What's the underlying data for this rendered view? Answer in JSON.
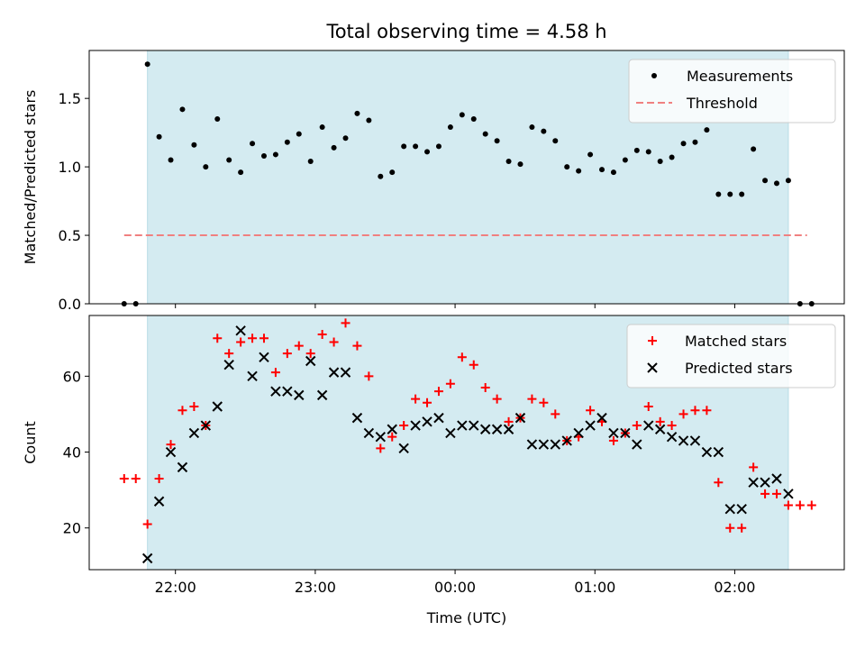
{
  "chart_data": {
    "title": "Total observing time = 4.58 h",
    "xlabel": "Time (UTC)",
    "x_tick_labels": [
      "22:00",
      "23:00",
      "00:00",
      "01:00",
      "02:00"
    ],
    "x_tick_values": [
      0,
      60,
      120,
      180,
      240
    ],
    "xlim": [
      -37,
      287
    ],
    "observing_window": [
      -12,
      263
    ],
    "window_color": "#d4ebf1",
    "panels": [
      {
        "type": "scatter",
        "ylabel": "Matched/Predicted stars",
        "ylim": [
          0,
          1.85
        ],
        "y_tick_values": [
          0.0,
          0.5,
          1.0,
          1.5
        ],
        "y_tick_labels": [
          "0.0",
          "0.5",
          "1.0",
          "1.5"
        ],
        "threshold": {
          "name": "Threshold",
          "value": 0.5,
          "x_range": [
            -22,
            271
          ],
          "color": "#f08080"
        },
        "series": [
          {
            "name": "Measurements",
            "color": "#000000",
            "marker": "dot",
            "x": [
              -22,
              -17,
              -12,
              -7,
              -2,
              3,
              8,
              13,
              18,
              23,
              28,
              33,
              38,
              43,
              48,
              53,
              58,
              63,
              68,
              73,
              78,
              83,
              88,
              93,
              98,
              103,
              108,
              113,
              118,
              123,
              128,
              133,
              138,
              143,
              148,
              153,
              158,
              163,
              168,
              173,
              178,
              183,
              188,
              193,
              198,
              203,
              208,
              213,
              218,
              223,
              228,
              233,
              238,
              243,
              248,
              253,
              258,
              263,
              268,
              273
            ],
            "y": [
              0.0,
              0.0,
              1.75,
              1.22,
              1.05,
              1.42,
              1.16,
              1.0,
              1.35,
              1.05,
              0.96,
              1.17,
              1.08,
              1.09,
              1.18,
              1.24,
              1.04,
              1.29,
              1.14,
              1.21,
              1.39,
              1.34,
              0.93,
              0.96,
              1.15,
              1.15,
              1.11,
              1.15,
              1.29,
              1.38,
              1.35,
              1.24,
              1.19,
              1.04,
              1.02,
              1.29,
              1.26,
              1.19,
              1.0,
              0.97,
              1.09,
              0.98,
              0.96,
              1.05,
              1.12,
              1.11,
              1.04,
              1.07,
              1.17,
              1.18,
              1.27,
              0.8,
              0.8,
              0.8,
              1.13,
              0.9,
              0.88,
              0.9,
              0.0,
              0.0
            ]
          }
        ]
      },
      {
        "type": "scatter",
        "ylabel": "Count",
        "ylim": [
          9,
          76
        ],
        "y_tick_values": [
          20,
          40,
          60
        ],
        "y_tick_labels": [
          "20",
          "40",
          "60"
        ],
        "series": [
          {
            "name": "Matched stars",
            "color": "#ff0000",
            "marker": "plus",
            "x": [
              -22,
              -17,
              -12,
              -7,
              -2,
              3,
              8,
              13,
              18,
              23,
              28,
              33,
              38,
              43,
              48,
              53,
              58,
              63,
              68,
              73,
              78,
              83,
              88,
              93,
              98,
              103,
              108,
              113,
              118,
              123,
              128,
              133,
              138,
              143,
              148,
              153,
              158,
              163,
              168,
              173,
              178,
              183,
              188,
              193,
              198,
              203,
              208,
              213,
              218,
              223,
              228,
              233,
              238,
              243,
              248,
              253,
              258,
              263,
              268,
              273
            ],
            "y": [
              33,
              33,
              21,
              33,
              42,
              51,
              52,
              47,
              70,
              66,
              69,
              70,
              70,
              61,
              66,
              68,
              66,
              71,
              69,
              74,
              68,
              60,
              41,
              44,
              47,
              54,
              53,
              56,
              58,
              65,
              63,
              57,
              54,
              48,
              49,
              54,
              53,
              50,
              43,
              44,
              51,
              48,
              43,
              45,
              47,
              52,
              48,
              47,
              50,
              51,
              51,
              32,
              20,
              20,
              36,
              29,
              29,
              26,
              26,
              26
            ]
          },
          {
            "name": "Predicted stars",
            "color": "#000000",
            "marker": "x",
            "x": [
              -12,
              -7,
              -2,
              3,
              8,
              13,
              18,
              23,
              28,
              33,
              38,
              43,
              48,
              53,
              58,
              63,
              68,
              73,
              78,
              83,
              88,
              93,
              98,
              103,
              108,
              113,
              118,
              123,
              128,
              133,
              138,
              143,
              148,
              153,
              158,
              163,
              168,
              173,
              178,
              183,
              188,
              193,
              198,
              203,
              208,
              213,
              218,
              223,
              228,
              233,
              238,
              243,
              248,
              253,
              258,
              263
            ],
            "y": [
              12,
              27,
              40,
              36,
              45,
              47,
              52,
              63,
              72,
              60,
              65,
              56,
              56,
              55,
              64,
              55,
              61,
              61,
              49,
              45,
              44,
              46,
              41,
              47,
              48,
              49,
              45,
              47,
              47,
              46,
              46,
              46,
              49,
              42,
              42,
              42,
              43,
              45,
              47,
              49,
              45,
              45,
              42,
              47,
              46,
              44,
              43,
              43,
              40,
              40,
              25,
              25,
              32,
              32,
              33,
              29
            ]
          }
        ]
      }
    ]
  }
}
